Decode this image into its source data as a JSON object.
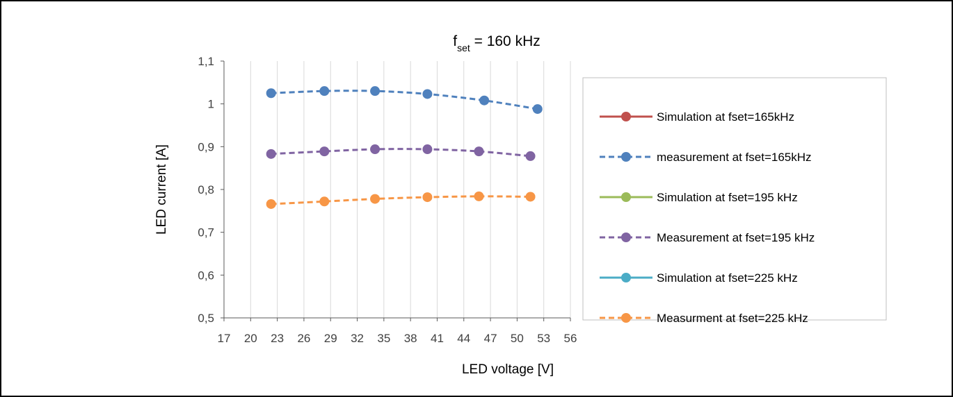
{
  "chart_data": {
    "type": "line",
    "title_main": "f",
    "title_sub": "set",
    "title_rest": " = 160 kHz",
    "xlabel": "LED voltage [V]",
    "ylabel": "LED current [A]",
    "xlim": [
      17,
      56
    ],
    "ylim": [
      0.5,
      1.1
    ],
    "x_ticks": [
      17,
      20,
      23,
      26,
      29,
      32,
      35,
      38,
      41,
      44,
      47,
      50,
      53,
      56
    ],
    "y_ticks": [
      0.5,
      0.6,
      0.7,
      0.8,
      0.9,
      1.0,
      1.1
    ],
    "y_tick_labels": [
      "0,5",
      "0,6",
      "0,7",
      "0,8",
      "0,9",
      "1",
      "1,1"
    ],
    "grid": "vertical",
    "legend_position": "right",
    "series": [
      {
        "name": "Simulation at fset=165kHz",
        "color": "#C0504D",
        "dash": "solid",
        "x": [],
        "y": []
      },
      {
        "name": "measurement at fset=165kHz",
        "color": "#4F81BD",
        "dash": "dashed",
        "x": [
          22.3,
          28.3,
          34.0,
          39.9,
          46.3,
          52.3
        ],
        "y": [
          1.025,
          1.03,
          1.03,
          1.023,
          1.008,
          0.988
        ]
      },
      {
        "name": "Simulation at fset=195 kHz",
        "color": "#9BBB59",
        "dash": "solid",
        "x": [],
        "y": []
      },
      {
        "name": "Measurement at fset=195 kHz",
        "color": "#8064A2",
        "dash": "dashed",
        "x": [
          22.3,
          28.3,
          34.0,
          39.9,
          45.7,
          51.5
        ],
        "y": [
          0.883,
          0.889,
          0.894,
          0.894,
          0.889,
          0.878
        ]
      },
      {
        "name": "Simulation at fset=225 kHz",
        "color": "#4BACC6",
        "dash": "solid",
        "x": [],
        "y": []
      },
      {
        "name": "Measurment at fset=225 kHz",
        "color": "#F79646",
        "dash": "dashed",
        "x": [
          22.3,
          28.3,
          34.0,
          39.9,
          45.7,
          51.5
        ],
        "y": [
          0.766,
          0.772,
          0.778,
          0.782,
          0.784,
          0.783
        ]
      }
    ]
  }
}
